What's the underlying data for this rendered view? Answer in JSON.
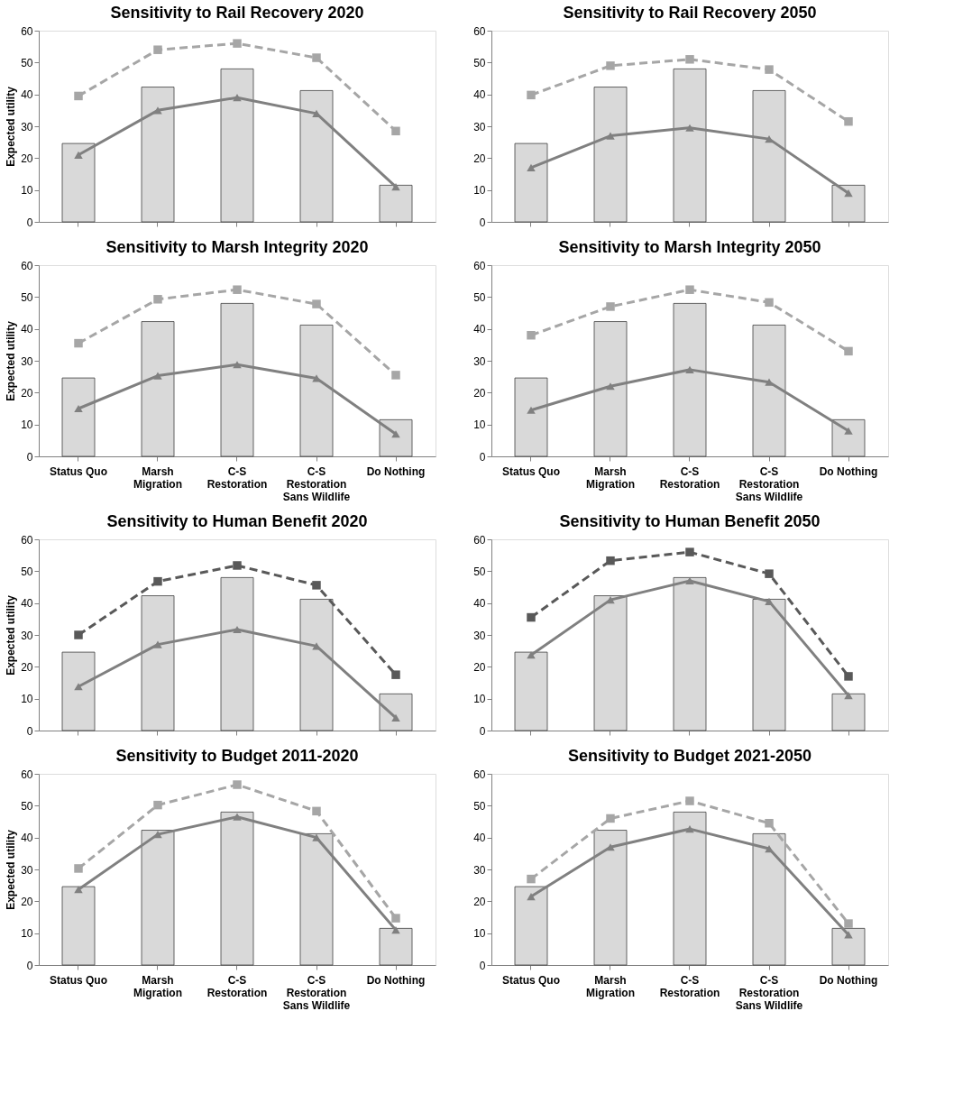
{
  "chart_data": [
    {
      "type": "bar",
      "title": "Sensitivity to Rail Recovery 2020",
      "ylabel": "Expected utility",
      "categories": [
        null,
        null,
        null,
        null,
        null
      ],
      "ylim": [
        0,
        60
      ],
      "yticks": [
        0,
        10,
        20,
        30,
        40,
        50,
        60
      ],
      "tick_labels": "y",
      "series": [
        {
          "color": "#d9d9d9",
          "values": [
            24.6,
            42.3,
            48,
            41.2,
            11.5
          ]
        },
        {
          "type": "line",
          "line_style": "dashed",
          "marker": "square",
          "color": "#a6a6a6",
          "values": [
            39.5,
            54,
            56,
            51.5,
            28.5
          ]
        },
        {
          "type": "line",
          "line_style": "solid",
          "marker": "triangle",
          "color": "#808080",
          "values": [
            21,
            35,
            39,
            34,
            11
          ]
        }
      ]
    },
    {
      "type": "bar",
      "title": "Sensitivity to Rail Recovery 2050",
      "categories": [
        null,
        null,
        null,
        null,
        null
      ],
      "ylim": [
        0,
        60
      ],
      "yticks": [
        0,
        10,
        20,
        30,
        40,
        50,
        60
      ],
      "tick_labels": "y",
      "series": [
        {
          "color": "#d9d9d9",
          "values": [
            24.6,
            42.3,
            48,
            41.2,
            11.5
          ]
        },
        {
          "type": "line",
          "line_style": "dashed",
          "marker": "square",
          "color": "#a6a6a6",
          "values": [
            39.8,
            49,
            51,
            47.8,
            31.5
          ]
        },
        {
          "type": "line",
          "line_style": "solid",
          "marker": "triangle",
          "color": "#808080",
          "values": [
            17,
            27,
            29.5,
            26,
            9
          ]
        }
      ]
    },
    {
      "type": "bar",
      "title": "Sensitivity to Marsh Integrity 2020",
      "ylabel": "Expected utility",
      "categories": [
        "Status Quo",
        "Marsh Migration",
        "C-S Restoration",
        "C-S Restoration Sans Wildlife",
        "Do Nothing"
      ],
      "ylim": [
        0,
        60
      ],
      "yticks": [
        0,
        10,
        20,
        30,
        40,
        50,
        60
      ],
      "series": [
        {
          "color": "#d9d9d9",
          "values": [
            24.6,
            42.3,
            48,
            41.2,
            11.5
          ]
        },
        {
          "type": "line",
          "line_style": "dashed",
          "marker": "square",
          "color": "#a6a6a6",
          "values": [
            35.5,
            49.3,
            52.3,
            47.8,
            25.5
          ]
        },
        {
          "type": "line",
          "line_style": "solid",
          "marker": "triangle",
          "color": "#808080",
          "values": [
            15,
            25.3,
            28.8,
            24.5,
            7
          ]
        }
      ]
    },
    {
      "type": "bar",
      "title": "Sensitivity to Marsh Integrity 2050",
      "categories": [
        "Status Quo",
        "Marsh Migration",
        "C-S Restoration",
        "C-S Restoration Sans Wildlife",
        "Do Nothing"
      ],
      "ylim": [
        0,
        60
      ],
      "yticks": [
        0,
        10,
        20,
        30,
        40,
        50,
        60
      ],
      "series": [
        {
          "color": "#d9d9d9",
          "values": [
            24.6,
            42.3,
            48,
            41.2,
            11.5
          ]
        },
        {
          "type": "line",
          "line_style": "dashed",
          "marker": "square",
          "color": "#a6a6a6",
          "values": [
            38,
            47,
            52.3,
            48.3,
            33
          ]
        },
        {
          "type": "line",
          "line_style": "solid",
          "marker": "triangle",
          "color": "#808080",
          "values": [
            14.5,
            22,
            27.2,
            23.3,
            8
          ]
        }
      ]
    },
    {
      "type": "bar",
      "title": "Sensitivity to Human Benefit 2020",
      "ylabel": "Expected utility",
      "categories": [
        null,
        null,
        null,
        null,
        null
      ],
      "ylim": [
        0,
        60
      ],
      "yticks": [
        0,
        10,
        20,
        30,
        40,
        50,
        60
      ],
      "tick_labels": "y",
      "series": [
        {
          "color": "#d9d9d9",
          "values": [
            24.6,
            42.3,
            48,
            41.2,
            11.5
          ]
        },
        {
          "type": "line",
          "line_style": "dashed",
          "marker": "square",
          "color": "#595959",
          "values": [
            30,
            46.8,
            51.8,
            45.6,
            17.5
          ]
        },
        {
          "type": "line",
          "line_style": "solid",
          "marker": "triangle",
          "color": "#808080",
          "values": [
            13.8,
            27,
            31.7,
            26.5,
            4
          ]
        }
      ]
    },
    {
      "type": "bar",
      "title": "Sensitivity to Human Benefit 2050",
      "categories": [
        null,
        null,
        null,
        null,
        null
      ],
      "ylim": [
        0,
        60
      ],
      "yticks": [
        0,
        10,
        20,
        30,
        40,
        50,
        60
      ],
      "tick_labels": "y",
      "series": [
        {
          "color": "#d9d9d9",
          "values": [
            24.6,
            42.3,
            48,
            41.2,
            11.5
          ]
        },
        {
          "type": "line",
          "line_style": "dashed",
          "marker": "square",
          "color": "#595959",
          "values": [
            35.5,
            53.3,
            56,
            49.2,
            17
          ]
        },
        {
          "type": "line",
          "line_style": "solid",
          "marker": "triangle",
          "color": "#808080",
          "values": [
            23.7,
            41,
            47,
            40.5,
            11
          ]
        }
      ]
    },
    {
      "type": "bar",
      "title": "Sensitivity to Budget 2011-2020",
      "ylabel": "Expected utility",
      "categories": [
        "Status Quo",
        "Marsh Migration",
        "C-S Restoration",
        "C-S Restoration Sans Wildlife",
        "Do Nothing"
      ],
      "ylim": [
        0,
        60
      ],
      "yticks": [
        0,
        10,
        20,
        30,
        40,
        50,
        60
      ],
      "series": [
        {
          "color": "#d9d9d9",
          "values": [
            24.6,
            42.3,
            48,
            41.2,
            11.5
          ]
        },
        {
          "type": "line",
          "line_style": "dashed",
          "marker": "square",
          "color": "#a6a6a6",
          "values": [
            30.3,
            50.2,
            56.6,
            48.3,
            14.7
          ]
        },
        {
          "type": "line",
          "line_style": "solid",
          "marker": "triangle",
          "color": "#808080",
          "values": [
            23.7,
            41,
            46.5,
            40,
            11
          ]
        }
      ]
    },
    {
      "type": "bar",
      "title": "Sensitivity to Budget 2021-2050",
      "categories": [
        "Status Quo",
        "Marsh Migration",
        "C-S Restoration",
        "C-S Restoration Sans Wildlife",
        "Do Nothing"
      ],
      "ylim": [
        0,
        60
      ],
      "yticks": [
        0,
        10,
        20,
        30,
        40,
        50,
        60
      ],
      "series": [
        {
          "color": "#d9d9d9",
          "values": [
            24.6,
            42.3,
            48,
            41.2,
            11.5
          ]
        },
        {
          "type": "line",
          "line_style": "dashed",
          "marker": "square",
          "color": "#a6a6a6",
          "values": [
            27,
            46,
            51.5,
            44.5,
            13
          ]
        },
        {
          "type": "line",
          "line_style": "solid",
          "marker": "triangle",
          "color": "#808080",
          "values": [
            21.5,
            37,
            42.7,
            36.5,
            9.5
          ]
        }
      ]
    }
  ]
}
